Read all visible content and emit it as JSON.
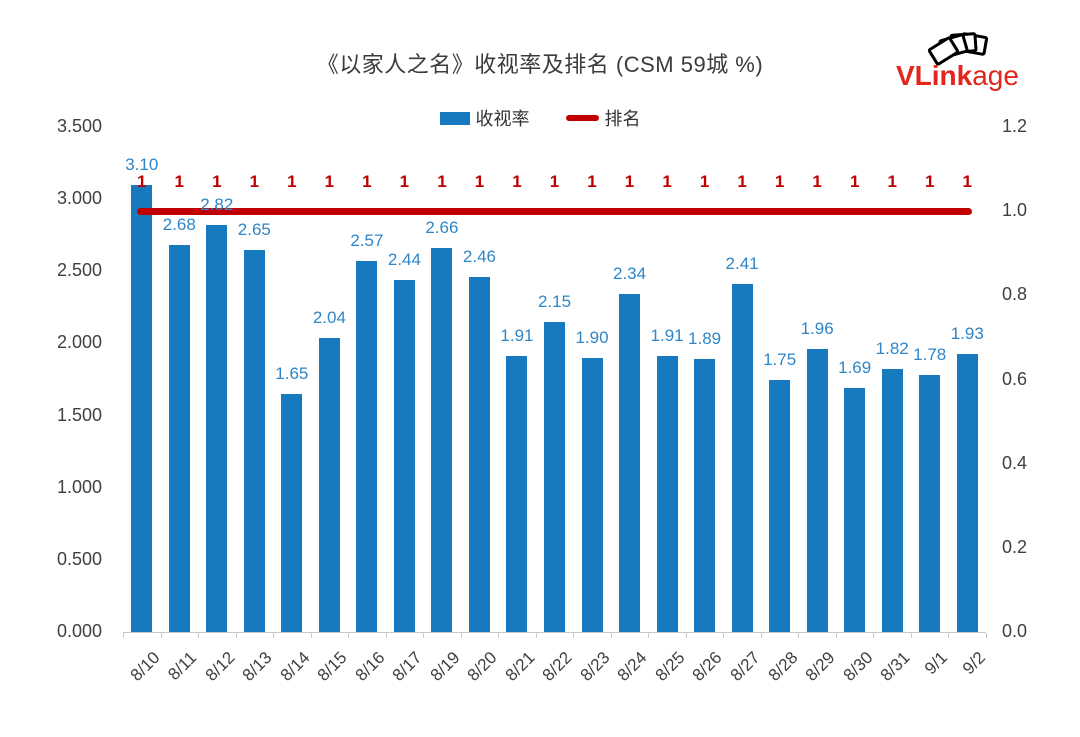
{
  "title": "《以家人之名》收视率及排名 (CSM 59城 %)",
  "logo": {
    "brand_bold": "VLink",
    "brand_light": "age",
    "color": "#e2261d",
    "icon": "stacked-photo-cards"
  },
  "legend": [
    {
      "label": "收视率",
      "type": "bar",
      "color": "#187abe"
    },
    {
      "label": "排名",
      "type": "line",
      "color": "#c00000"
    }
  ],
  "chart_data": {
    "type": "bar",
    "combo": "bar + line, dual axis",
    "title": "《以家人之名》收视率及排名 (CSM 59城 %)",
    "categories": [
      "8/10",
      "8/11",
      "8/12",
      "8/13",
      "8/14",
      "8/15",
      "8/16",
      "8/17",
      "8/19",
      "8/20",
      "8/21",
      "8/22",
      "8/23",
      "8/24",
      "8/25",
      "8/26",
      "8/27",
      "8/28",
      "8/29",
      "8/30",
      "8/31",
      "9/1",
      "9/2"
    ],
    "series": [
      {
        "name": "收视率",
        "type": "bar",
        "axis": "left",
        "color": "#187abe",
        "label_color": "#2e86c8",
        "values": [
          3.1,
          2.68,
          2.82,
          2.65,
          1.65,
          2.04,
          2.57,
          2.44,
          2.66,
          2.46,
          1.91,
          2.15,
          1.9,
          2.34,
          1.91,
          1.89,
          2.41,
          1.75,
          1.96,
          1.69,
          1.82,
          1.78,
          1.93
        ]
      },
      {
        "name": "排名",
        "type": "line",
        "axis": "right",
        "color": "#c00000",
        "label_color": "#c00000",
        "values": [
          1,
          1,
          1,
          1,
          1,
          1,
          1,
          1,
          1,
          1,
          1,
          1,
          1,
          1,
          1,
          1,
          1,
          1,
          1,
          1,
          1,
          1,
          1
        ]
      }
    ],
    "left_axis": {
      "min": 0,
      "max": 3.5,
      "tick_labels": [
        "3.500",
        "3.000",
        "2.500",
        "2.000",
        "1.500",
        "1.000",
        "0.500",
        "0.000"
      ]
    },
    "right_axis": {
      "min": 0,
      "max": 1.2,
      "tick_labels": [
        "1.2",
        "1.0",
        "0.8",
        "0.6",
        "0.4",
        "0.2",
        "0.0"
      ]
    },
    "grid": "off",
    "legend_position": "top-center"
  }
}
